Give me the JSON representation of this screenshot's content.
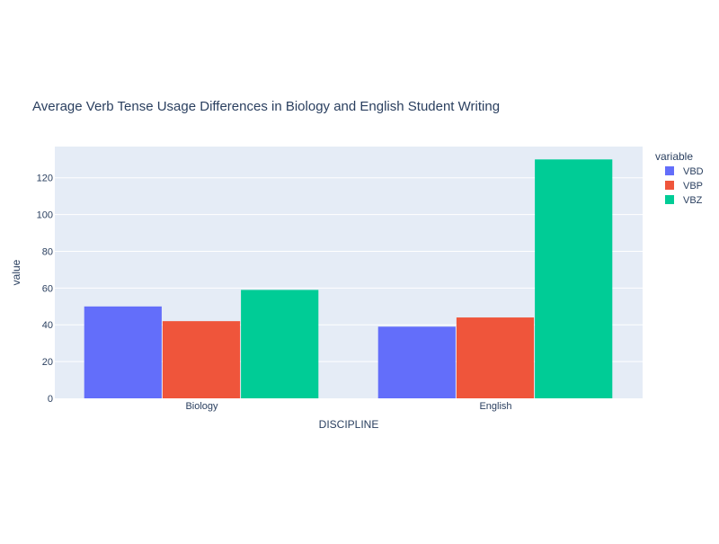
{
  "chart_data": {
    "type": "bar",
    "barmode": "group",
    "title": "Average Verb Tense Usage Differences in Biology and English Student Writing",
    "xlabel": "DISCIPLINE",
    "ylabel": "value",
    "categories": [
      "Biology",
      "English"
    ],
    "ylim": [
      0,
      137
    ],
    "yticks": [
      0,
      20,
      40,
      60,
      80,
      100,
      120
    ],
    "grid": true,
    "legend": {
      "title": "variable",
      "position": "right"
    },
    "series": [
      {
        "name": "VBD",
        "color": "#636efa",
        "values": [
          50,
          39
        ]
      },
      {
        "name": "VBP",
        "color": "#ef553b",
        "values": [
          42,
          44
        ]
      },
      {
        "name": "VBZ",
        "color": "#00cc96",
        "values": [
          59,
          130
        ]
      }
    ],
    "colors": {
      "plot_bg": "#e5ecf6",
      "grid": "#ffffff",
      "text": "#2a3f5f"
    }
  }
}
